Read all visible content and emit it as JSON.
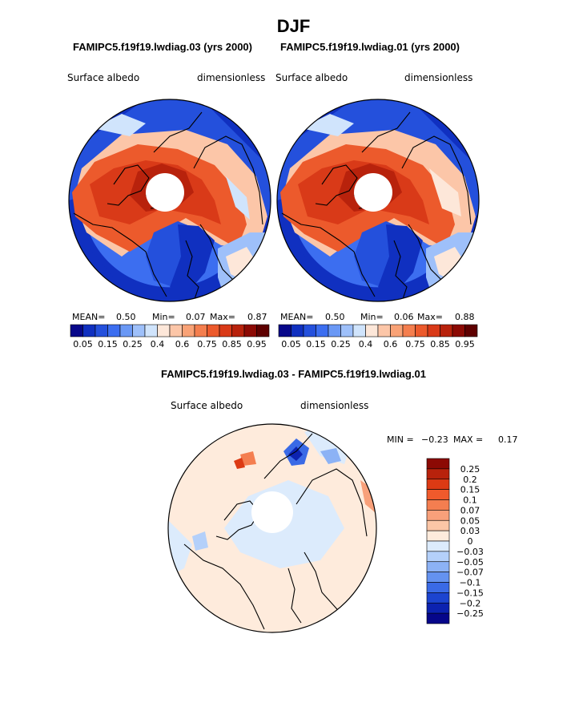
{
  "page": {
    "title": "DJF"
  },
  "panels": [
    {
      "subtitle": "FAMIPC5.f19f19.lwdiag.03 (yrs 2000)",
      "variable": "Surface albedo",
      "units": "dimensionless",
      "stats": {
        "mean_label": "MEAN=",
        "mean": "0.50",
        "min_label": "Min=",
        "min": "0.07",
        "max_label": "Max=",
        "max": "0.87"
      }
    },
    {
      "subtitle": "FAMIPC5.f19f19.lwdiag.01 (yrs 2000)",
      "variable": "Surface albedo",
      "units": "dimensionless",
      "stats": {
        "mean_label": "MEAN=",
        "mean": "0.50",
        "min_label": "Min=",
        "min": "0.06",
        "max_label": "Max=",
        "max": "0.88"
      }
    }
  ],
  "diff_panel": {
    "title": "FAMIPC5.f19f19.lwdiag.03 - FAMIPC5.f19f19.lwdiag.01",
    "variable": "Surface albedo",
    "units": "dimensionless",
    "min_label": "MIN =",
    "min": "−0.23",
    "max_label": "MAX =",
    "max": "0.17"
  },
  "chart_data": [
    {
      "type": "heatmap",
      "projection": "north-polar-stereographic",
      "title": "FAMIPC5.f19f19.lwdiag.03 (yrs 2000)",
      "variable": "Surface albedo",
      "units": "dimensionless",
      "mean": 0.5,
      "min": 0.07,
      "max": 0.87,
      "colorbar": {
        "levels": [
          0.05,
          0.1,
          0.15,
          0.2,
          0.25,
          0.3,
          0.4,
          0.5,
          0.6,
          0.7,
          0.75,
          0.8,
          0.85,
          0.9,
          0.95
        ],
        "tick_labels": [
          "0.05",
          "0.15",
          "0.25",
          "0.4",
          "0.6",
          "0.75",
          "0.85",
          "0.95"
        ],
        "colors": [
          "#08088a",
          "#1030c0",
          "#2450dc",
          "#3c6ef0",
          "#6a98f5",
          "#9ec0fa",
          "#d0e4fc",
          "#fde7d9",
          "#fcc6a8",
          "#f9a276",
          "#f47e4e",
          "#ec5a2c",
          "#d93a18",
          "#b8220c",
          "#8c0a04",
          "#5e0000"
        ]
      }
    },
    {
      "type": "heatmap",
      "projection": "north-polar-stereographic",
      "title": "FAMIPC5.f19f19.lwdiag.01 (yrs 2000)",
      "variable": "Surface albedo",
      "units": "dimensionless",
      "mean": 0.5,
      "min": 0.06,
      "max": 0.88,
      "colorbar": {
        "levels": [
          0.05,
          0.1,
          0.15,
          0.2,
          0.25,
          0.3,
          0.4,
          0.5,
          0.6,
          0.7,
          0.75,
          0.8,
          0.85,
          0.9,
          0.95
        ],
        "tick_labels": [
          "0.05",
          "0.15",
          "0.25",
          "0.4",
          "0.6",
          "0.75",
          "0.85",
          "0.95"
        ],
        "colors": [
          "#08088a",
          "#1030c0",
          "#2450dc",
          "#3c6ef0",
          "#6a98f5",
          "#9ec0fa",
          "#d0e4fc",
          "#fde7d9",
          "#fcc6a8",
          "#f9a276",
          "#f47e4e",
          "#ec5a2c",
          "#d93a18",
          "#b8220c",
          "#8c0a04",
          "#5e0000"
        ]
      }
    },
    {
      "type": "heatmap",
      "projection": "north-polar-stereographic",
      "title": "FAMIPC5.f19f19.lwdiag.03 - FAMIPC5.f19f19.lwdiag.01",
      "variable": "Surface albedo",
      "units": "dimensionless",
      "min": -0.23,
      "max": 0.17,
      "colorbar": {
        "orientation": "vertical",
        "levels": [
          0.25,
          0.2,
          0.15,
          0.1,
          0.07,
          0.05,
          0.03,
          0,
          -0.03,
          -0.05,
          -0.07,
          -0.1,
          -0.15,
          -0.2,
          -0.25
        ],
        "tick_labels": [
          "0.25",
          "0.2",
          "0.15",
          "0.1",
          "0.07",
          "0.05",
          "0.03",
          "0",
          "−0.03",
          "−0.05",
          "−0.07",
          "−0.1",
          "−0.15",
          "−0.2",
          "−0.25"
        ],
        "colors": [
          "#8c0a04",
          "#b8220c",
          "#dc3a14",
          "#f05a2c",
          "#f47e50",
          "#f8a07a",
          "#fcc6a6",
          "#feebdc",
          "#dcebfc",
          "#b4d0fa",
          "#8cb2f5",
          "#6492f0",
          "#3a6ae6",
          "#1c44d0",
          "#0c22b0",
          "#06068a"
        ]
      }
    }
  ]
}
